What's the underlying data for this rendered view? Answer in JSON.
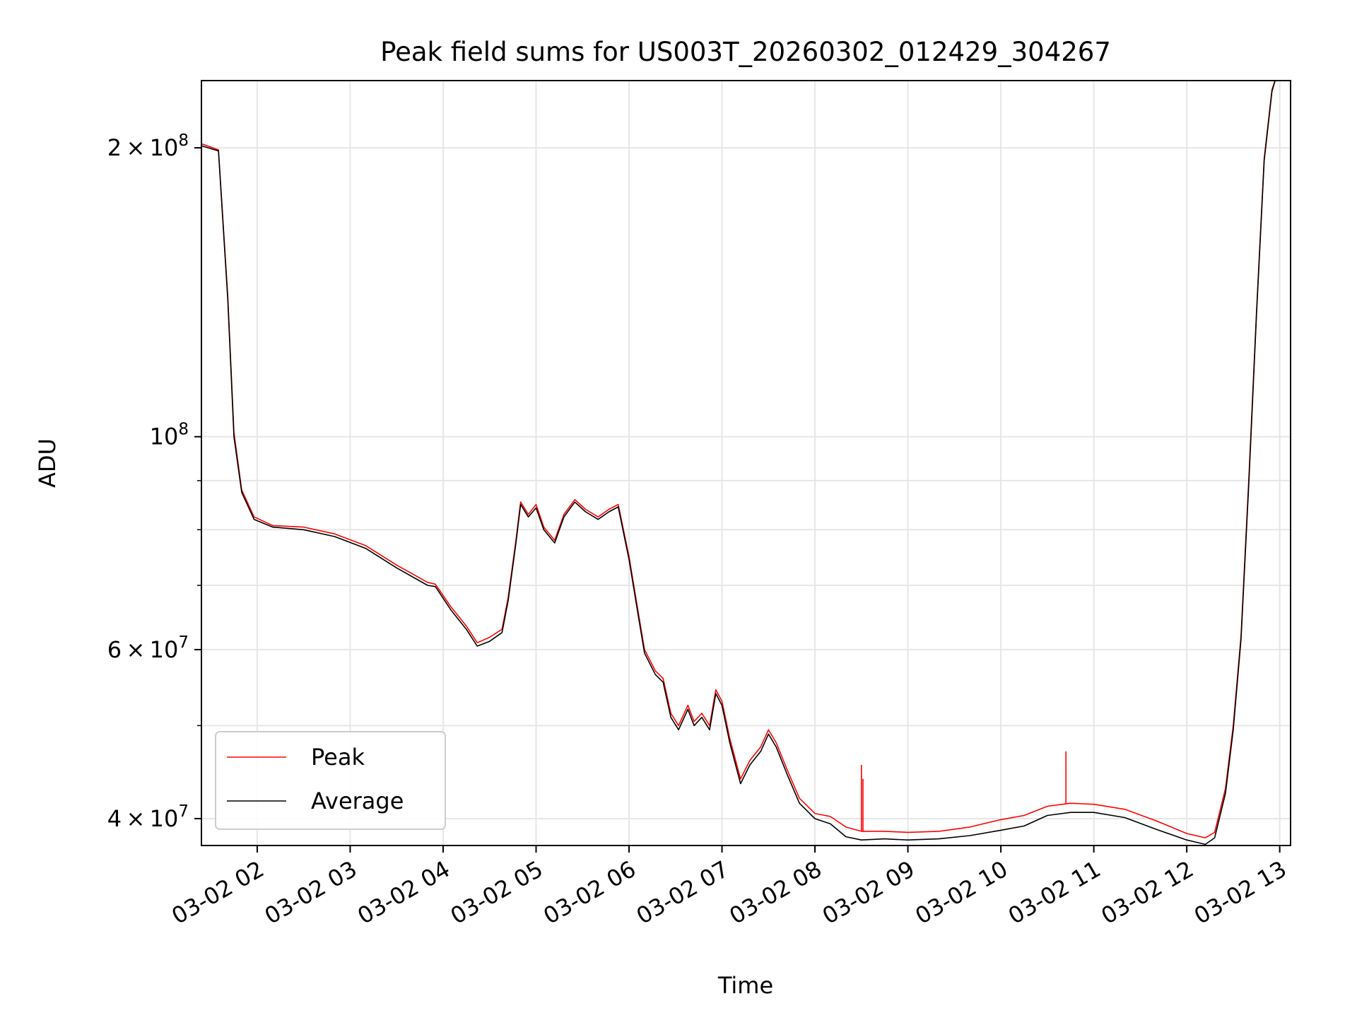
{
  "chart_data": {
    "type": "line",
    "title": "Peak field sums for US003T_20260302_012429_304267",
    "xlabel": "Time",
    "ylabel": "ADU",
    "yscale": "log",
    "xlim": [
      "03-02 01:24",
      "03-02 13:07"
    ],
    "ylim": [
      37500000,
      235000000
    ],
    "x_ticks": [
      "03-02 02",
      "03-02 03",
      "03-02 04",
      "03-02 05",
      "03-02 06",
      "03-02 07",
      "03-02 08",
      "03-02 09",
      "03-02 10",
      "03-02 11",
      "03-02 12",
      "03-02 13"
    ],
    "y_ticks_major": [
      {
        "value": 40000000,
        "mant": "4",
        "exp": "7"
      },
      {
        "value": 60000000,
        "mant": "6",
        "exp": "7"
      },
      {
        "value": 100000000,
        "mant": "",
        "exp": "8"
      },
      {
        "value": 200000000,
        "mant": "2",
        "exp": "8"
      }
    ],
    "y_ticks_minor": [
      50000000,
      70000000,
      80000000,
      90000000
    ],
    "grid": true,
    "legend_position": "lower-left",
    "series": [
      {
        "name": "Peak",
        "color": "#ff0000",
        "points": [
          [
            "03-02 01:24",
            202000000
          ],
          [
            "03-02 01:35",
            199000000
          ],
          [
            "03-02 01:41",
            140000000
          ],
          [
            "03-02 01:45",
            101000000
          ],
          [
            "03-02 01:50",
            88000000
          ],
          [
            "03-02 01:58",
            82500000
          ],
          [
            "03-02 02:10",
            80800000
          ],
          [
            "03-02 02:30",
            80500000
          ],
          [
            "03-02 02:50",
            79200000
          ],
          [
            "03-02 03:10",
            77000000
          ],
          [
            "03-02 03:30",
            73500000
          ],
          [
            "03-02 03:50",
            70500000
          ],
          [
            "03-02 03:55",
            70200000
          ],
          [
            "03-02 04:05",
            66500000
          ],
          [
            "03-02 04:15",
            63500000
          ],
          [
            "03-02 04:22",
            61000000
          ],
          [
            "03-02 04:30",
            61800000
          ],
          [
            "03-02 04:38",
            63000000
          ],
          [
            "03-02 04:42",
            68000000
          ],
          [
            "03-02 04:47",
            78000000
          ],
          [
            "03-02 04:50",
            85500000
          ],
          [
            "03-02 04:55",
            83000000
          ],
          [
            "03-02 05:00",
            85000000
          ],
          [
            "03-02 05:05",
            80500000
          ],
          [
            "03-02 05:12",
            78000000
          ],
          [
            "03-02 05:18",
            83000000
          ],
          [
            "03-02 05:25",
            86000000
          ],
          [
            "03-02 05:32",
            84000000
          ],
          [
            "03-02 05:40",
            82500000
          ],
          [
            "03-02 05:47",
            84000000
          ],
          [
            "03-02 05:53",
            85000000
          ],
          [
            "03-02 06:00",
            75000000
          ],
          [
            "03-02 06:05",
            67000000
          ],
          [
            "03-02 06:10",
            60000000
          ],
          [
            "03-02 06:17",
            57000000
          ],
          [
            "03-02 06:22",
            56000000
          ],
          [
            "03-02 06:27",
            51500000
          ],
          [
            "03-02 06:32",
            50000000
          ],
          [
            "03-02 06:38",
            52500000
          ],
          [
            "03-02 06:42",
            50500000
          ],
          [
            "03-02 06:47",
            51500000
          ],
          [
            "03-02 06:52",
            50000000
          ],
          [
            "03-02 06:56",
            54500000
          ],
          [
            "03-02 07:00",
            53000000
          ],
          [
            "03-02 07:05",
            48500000
          ],
          [
            "03-02 07:12",
            44000000
          ],
          [
            "03-02 07:18",
            46000000
          ],
          [
            "03-02 07:25",
            47500000
          ],
          [
            "03-02 07:30",
            49500000
          ],
          [
            "03-02 07:35",
            48000000
          ],
          [
            "03-02 07:42",
            45000000
          ],
          [
            "03-02 07:50",
            42000000
          ],
          [
            "03-02 08:00",
            40500000
          ],
          [
            "03-02 08:10",
            40200000
          ],
          [
            "03-02 08:20",
            39200000
          ],
          [
            "03-02 08:30",
            38800000
          ],
          [
            "03-02 08:45",
            38800000
          ],
          [
            "03-02 09:00",
            38700000
          ],
          [
            "03-02 09:20",
            38800000
          ],
          [
            "03-02 09:40",
            39200000
          ],
          [
            "03-02 10:00",
            39900000
          ],
          [
            "03-02 10:15",
            40300000
          ],
          [
            "03-02 10:30",
            41200000
          ],
          [
            "03-02 10:45",
            41500000
          ],
          [
            "03-02 11:00",
            41400000
          ],
          [
            "03-02 11:20",
            40900000
          ],
          [
            "03-02 11:40",
            39800000
          ],
          [
            "03-02 12:00",
            38600000
          ],
          [
            "03-02 12:12",
            38200000
          ],
          [
            "03-02 12:18",
            38700000
          ],
          [
            "03-02 12:25",
            43000000
          ],
          [
            "03-02 12:30",
            50000000
          ],
          [
            "03-02 12:35",
            62000000
          ],
          [
            "03-02 12:40",
            90000000
          ],
          [
            "03-02 12:45",
            135000000
          ],
          [
            "03-02 12:50",
            195000000
          ],
          [
            "03-02 12:55",
            230000000
          ],
          [
            "03-02 12:57",
            235000000
          ]
        ]
      },
      {
        "name": "Average",
        "color": "#000000",
        "points": [
          [
            "03-02 01:24",
            201000000
          ],
          [
            "03-02 01:35",
            198500000
          ],
          [
            "03-02 01:41",
            139000000
          ],
          [
            "03-02 01:45",
            100000000
          ],
          [
            "03-02 01:50",
            87500000
          ],
          [
            "03-02 01:58",
            82000000
          ],
          [
            "03-02 02:10",
            80500000
          ],
          [
            "03-02 02:30",
            80000000
          ],
          [
            "03-02 02:50",
            78700000
          ],
          [
            "03-02 03:10",
            76500000
          ],
          [
            "03-02 03:30",
            73000000
          ],
          [
            "03-02 03:50",
            70000000
          ],
          [
            "03-02 03:55",
            69800000
          ],
          [
            "03-02 04:05",
            66000000
          ],
          [
            "03-02 04:15",
            63000000
          ],
          [
            "03-02 04:22",
            60500000
          ],
          [
            "03-02 04:30",
            61200000
          ],
          [
            "03-02 04:38",
            62500000
          ],
          [
            "03-02 04:42",
            67500000
          ],
          [
            "03-02 04:47",
            77500000
          ],
          [
            "03-02 04:50",
            85000000
          ],
          [
            "03-02 04:55",
            82500000
          ],
          [
            "03-02 05:00",
            84300000
          ],
          [
            "03-02 05:05",
            80000000
          ],
          [
            "03-02 05:12",
            77500000
          ],
          [
            "03-02 05:18",
            82500000
          ],
          [
            "03-02 05:25",
            85500000
          ],
          [
            "03-02 05:32",
            83500000
          ],
          [
            "03-02 05:40",
            82000000
          ],
          [
            "03-02 05:47",
            83500000
          ],
          [
            "03-02 05:53",
            84500000
          ],
          [
            "03-02 06:00",
            74500000
          ],
          [
            "03-02 06:05",
            66500000
          ],
          [
            "03-02 06:10",
            59500000
          ],
          [
            "03-02 06:17",
            56500000
          ],
          [
            "03-02 06:22",
            55500000
          ],
          [
            "03-02 06:27",
            51000000
          ],
          [
            "03-02 06:32",
            49500000
          ],
          [
            "03-02 06:38",
            52000000
          ],
          [
            "03-02 06:42",
            50000000
          ],
          [
            "03-02 06:47",
            51000000
          ],
          [
            "03-02 06:52",
            49500000
          ],
          [
            "03-02 06:56",
            54000000
          ],
          [
            "03-02 07:00",
            52500000
          ],
          [
            "03-02 07:05",
            48000000
          ],
          [
            "03-02 07:12",
            43500000
          ],
          [
            "03-02 07:18",
            45500000
          ],
          [
            "03-02 07:25",
            47000000
          ],
          [
            "03-02 07:30",
            49000000
          ],
          [
            "03-02 07:35",
            47500000
          ],
          [
            "03-02 07:42",
            44500000
          ],
          [
            "03-02 07:50",
            41500000
          ],
          [
            "03-02 08:00",
            40000000
          ],
          [
            "03-02 08:10",
            39500000
          ],
          [
            "03-02 08:20",
            38300000
          ],
          [
            "03-02 08:30",
            38000000
          ],
          [
            "03-02 08:45",
            38100000
          ],
          [
            "03-02 09:00",
            38000000
          ],
          [
            "03-02 09:20",
            38100000
          ],
          [
            "03-02 09:40",
            38400000
          ],
          [
            "03-02 10:00",
            38900000
          ],
          [
            "03-02 10:15",
            39300000
          ],
          [
            "03-02 10:30",
            40300000
          ],
          [
            "03-02 10:45",
            40600000
          ],
          [
            "03-02 11:00",
            40600000
          ],
          [
            "03-02 11:20",
            40100000
          ],
          [
            "03-02 11:40",
            39000000
          ],
          [
            "03-02 12:00",
            38000000
          ],
          [
            "03-02 12:12",
            37600000
          ],
          [
            "03-02 12:18",
            38200000
          ],
          [
            "03-02 12:25",
            42500000
          ],
          [
            "03-02 12:30",
            49500000
          ],
          [
            "03-02 12:35",
            61500000
          ],
          [
            "03-02 12:40",
            89000000
          ],
          [
            "03-02 12:45",
            134000000
          ],
          [
            "03-02 12:50",
            194000000
          ],
          [
            "03-02 12:55",
            229000000
          ],
          [
            "03-02 12:57",
            235000000
          ]
        ]
      }
    ],
    "spikes": [
      {
        "series": "Peak",
        "x": "03-02 08:30",
        "y": 45500000
      },
      {
        "series": "Peak",
        "x": "03-02 08:31",
        "y": 44000000
      },
      {
        "series": "Peak",
        "x": "03-02 10:42",
        "y": 47000000
      }
    ]
  }
}
